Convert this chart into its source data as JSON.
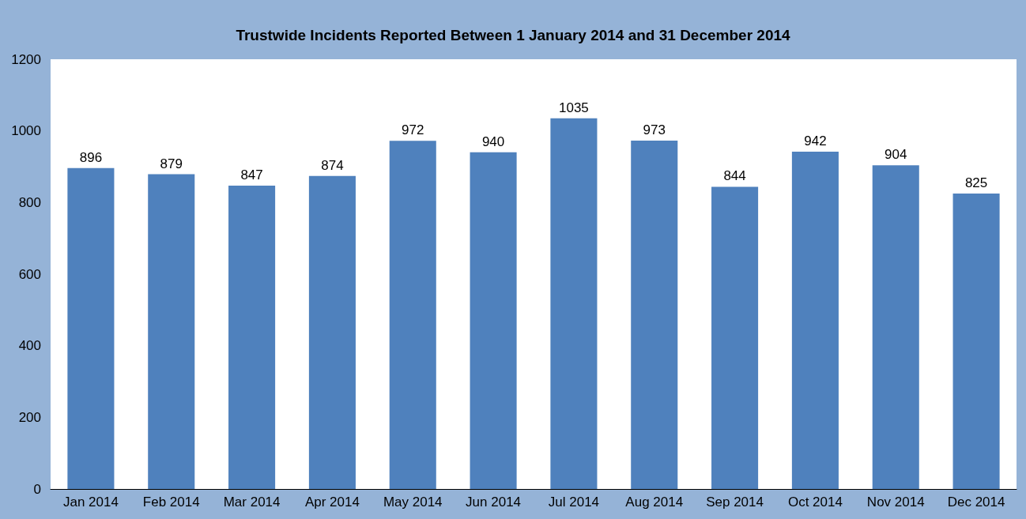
{
  "chart_data": {
    "type": "bar",
    "title": "Trustwide Incidents Reported Between 1 January 2014 and 31 December 2014",
    "categories": [
      "Jan 2014",
      "Feb 2014",
      "Mar 2014",
      "Apr 2014",
      "May 2014",
      "Jun 2014",
      "Jul 2014",
      "Aug 2014",
      "Sep 2014",
      "Oct 2014",
      "Nov 2014",
      "Dec 2014"
    ],
    "values": [
      896,
      879,
      847,
      874,
      972,
      940,
      1035,
      973,
      844,
      942,
      904,
      825
    ],
    "color": "#4f81bd",
    "ylim": [
      0,
      1200
    ],
    "yticks": [
      0,
      200,
      400,
      600,
      800,
      1000,
      1200
    ],
    "grid": false,
    "data_labels": true
  }
}
